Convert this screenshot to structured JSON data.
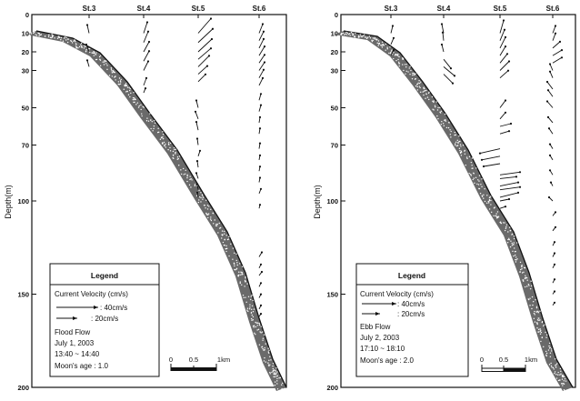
{
  "axis": {
    "ylabel": "Depth(m)",
    "ticks": [
      0,
      10,
      20,
      30,
      50,
      70,
      100,
      150,
      200
    ],
    "ylim": [
      0,
      200
    ],
    "stations": [
      "St.3",
      "St.4",
      "St.5",
      "St.6"
    ]
  },
  "panels": [
    {
      "legend": {
        "title": "Legend",
        "velocity_label": "Current Velocity (cm/s)",
        "scale_40": ": 40cm/s",
        "scale_20": ": 20cm/s",
        "flow": "Flood Flow",
        "date": "July 1, 2003",
        "time": "13:40 ~ 14:40",
        "moon": "Moon's age : 1.0"
      },
      "scalebar": {
        "labels": [
          "0",
          "0.5",
          "1km"
        ]
      }
    },
    {
      "legend": {
        "title": "Legend",
        "velocity_label": "Current Velocity (cm/s)",
        "scale_40": ": 40cm/s",
        "scale_20": ": 20cm/s",
        "flow": "Ebb Flow",
        "date": "July 2, 2003",
        "time": "17:10 ~ 18:10",
        "moon": "Moon's age : 2.0"
      },
      "scalebar": {
        "labels": [
          "0",
          "0.5",
          "1km"
        ]
      }
    }
  ],
  "colors": {
    "ink": "#111111",
    "seabed": "#555555"
  }
}
